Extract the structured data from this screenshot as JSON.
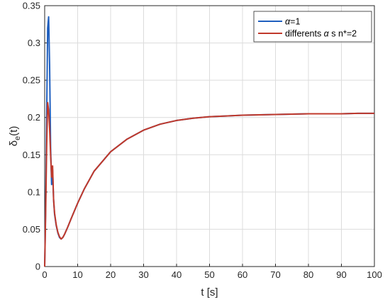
{
  "chart_data": {
    "type": "line",
    "xlabel": "t [s]",
    "ylabel_main": "δ",
    "ylabel_sub": "e",
    "ylabel_tail": "(t)",
    "xlim": [
      0,
      100
    ],
    "ylim": [
      0,
      0.35
    ],
    "xticks": [
      0,
      10,
      20,
      30,
      40,
      50,
      60,
      70,
      80,
      90,
      100
    ],
    "xtick_labels": [
      "0",
      "10",
      "20",
      "30",
      "40",
      "50",
      "60",
      "70",
      "80",
      "90",
      "100"
    ],
    "yticks": [
      0,
      0.05,
      0.1,
      0.15,
      0.2,
      0.25,
      0.3,
      0.35
    ],
    "ytick_labels": [
      "0",
      "0.05",
      "0.1",
      "0.15",
      "0.2",
      "0.25",
      "0.3",
      "0.35"
    ],
    "grid": true,
    "legend_position": "top-right",
    "series": [
      {
        "name": "α=1",
        "legend_greek": "α",
        "legend_rest": "=1",
        "color": "#1f5fbf",
        "x": [
          0,
          0.3,
          0.6,
          0.9,
          1.2,
          1.5,
          1.8,
          2.1,
          2.4,
          2.7,
          3,
          3.5,
          4,
          4.5,
          5,
          5.5,
          6,
          7,
          8,
          10,
          12,
          15,
          20,
          25,
          30,
          35,
          40,
          45,
          50,
          55,
          60,
          65,
          70,
          75,
          80,
          85,
          90,
          95,
          100
        ],
        "y": [
          0,
          0.08,
          0.2,
          0.32,
          0.335,
          0.27,
          0.16,
          0.11,
          0.13,
          0.09,
          0.07,
          0.055,
          0.045,
          0.039,
          0.037,
          0.039,
          0.043,
          0.053,
          0.064,
          0.085,
          0.104,
          0.128,
          0.154,
          0.171,
          0.183,
          0.191,
          0.196,
          0.199,
          0.201,
          0.202,
          0.203,
          0.2035,
          0.204,
          0.2045,
          0.205,
          0.205,
          0.205,
          0.2055,
          0.2055
        ]
      },
      {
        "name": "differents α s n*=2",
        "legend_prefix": "differents ",
        "legend_greek": "α",
        "legend_rest": " s n*=2",
        "color": "#c0392b",
        "x": [
          0,
          0.3,
          0.6,
          0.9,
          1.2,
          1.5,
          1.8,
          2.1,
          2.4,
          2.7,
          3,
          3.5,
          4,
          4.5,
          5,
          5.5,
          6,
          7,
          8,
          10,
          12,
          15,
          20,
          25,
          30,
          35,
          40,
          45,
          50,
          55,
          60,
          65,
          70,
          75,
          80,
          85,
          90,
          95,
          100
        ],
        "y": [
          0,
          0.07,
          0.16,
          0.22,
          0.21,
          0.185,
          0.15,
          0.12,
          0.135,
          0.09,
          0.072,
          0.056,
          0.046,
          0.04,
          0.037,
          0.039,
          0.043,
          0.053,
          0.064,
          0.085,
          0.104,
          0.128,
          0.154,
          0.171,
          0.183,
          0.191,
          0.196,
          0.199,
          0.201,
          0.202,
          0.203,
          0.2035,
          0.204,
          0.2045,
          0.205,
          0.205,
          0.205,
          0.2055,
          0.2055
        ]
      }
    ]
  }
}
